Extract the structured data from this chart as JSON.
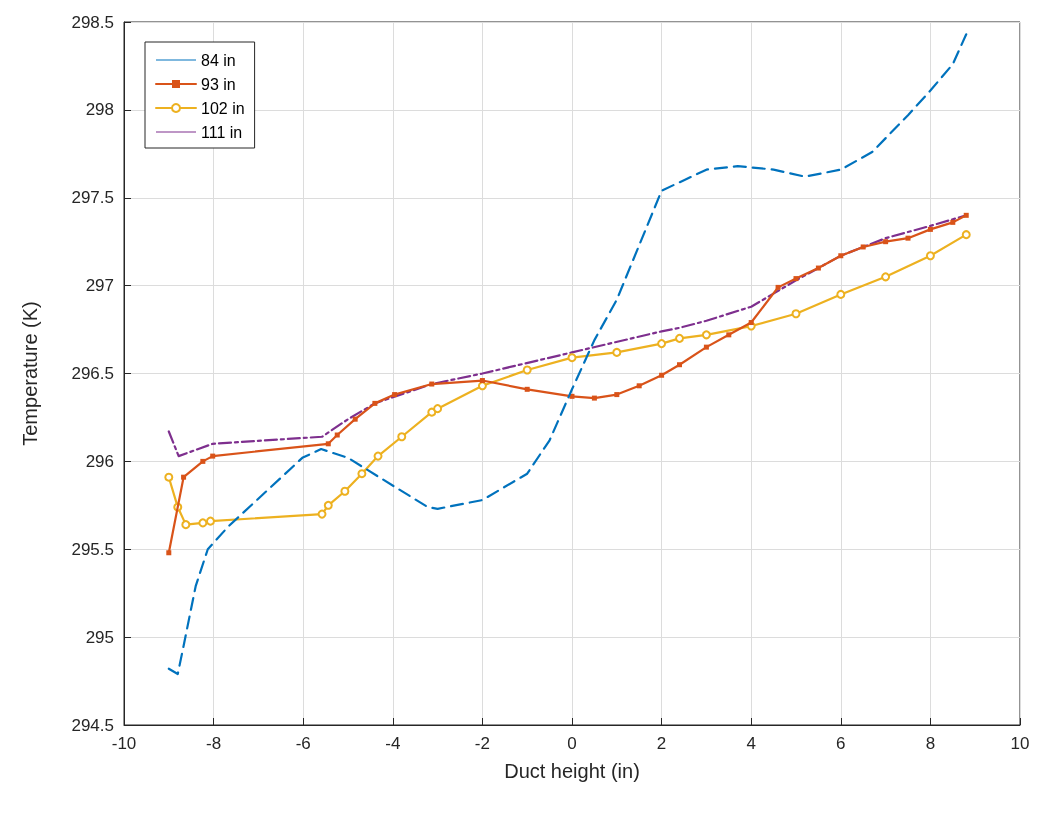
{
  "chart_data": {
    "type": "line",
    "xlabel": "Duct height (in)",
    "ylabel": "Temperature (K)",
    "xlim": [
      -10,
      10
    ],
    "xticks": [
      -10,
      -8,
      -6,
      -4,
      -2,
      0,
      2,
      4,
      6,
      8,
      10
    ],
    "ylim": [
      294.5,
      298.5
    ],
    "yticks": [
      294.5,
      295,
      295.5,
      296,
      296.5,
      297,
      297.5,
      298,
      298.5
    ],
    "grid": true,
    "legend": "top left",
    "series": [
      {
        "name": "84 in",
        "color": "#0072bd",
        "line_style": "dashed",
        "marker": "none",
        "x": [
          -9.0,
          -8.8,
          -8.67,
          -8.4,
          -8.13,
          -7.67,
          -6.78,
          -6.02,
          -5.6,
          -5.0,
          -4.24,
          -3.22,
          -3.0,
          -2.0,
          -1.0,
          -0.5,
          0.0,
          0.5,
          1.0,
          2.0,
          2.5,
          3.0,
          3.7,
          4.5,
          5.2,
          6.0,
          6.7,
          7.5,
          8.0,
          8.5,
          8.8
        ],
        "values": [
          294.82,
          294.79,
          294.95,
          295.29,
          295.5,
          295.63,
          295.84,
          296.02,
          296.07,
          296.02,
          295.9,
          295.74,
          295.73,
          295.78,
          295.93,
          296.12,
          296.41,
          296.69,
          296.92,
          297.54,
          297.6,
          297.66,
          297.68,
          297.66,
          297.62,
          297.66,
          297.76,
          297.97,
          298.11,
          298.26,
          298.43
        ]
      },
      {
        "name": "93 in",
        "color": "#d95319",
        "line_style": "solid",
        "marker": "square",
        "x": [
          -9.0,
          -8.67,
          -8.24,
          -8.02,
          -5.44,
          -5.24,
          -4.84,
          -4.4,
          -3.96,
          -3.13,
          -2.0,
          -1.0,
          0.0,
          0.5,
          1.0,
          1.5,
          2.0,
          2.4,
          3.0,
          3.5,
          4.0,
          4.6,
          5.0,
          5.5,
          6.0,
          6.5,
          7.0,
          7.5,
          8.0,
          8.5,
          8.8
        ],
        "values": [
          295.48,
          295.91,
          296.0,
          296.03,
          296.1,
          296.15,
          296.24,
          296.33,
          296.38,
          296.44,
          296.46,
          296.41,
          296.37,
          296.36,
          296.38,
          296.43,
          296.49,
          296.55,
          296.65,
          296.72,
          296.79,
          296.99,
          297.04,
          297.1,
          297.17,
          297.22,
          297.25,
          297.27,
          297.32,
          297.36,
          297.4
        ]
      },
      {
        "name": "102 in",
        "color": "#edb120",
        "line_style": "solid",
        "marker": "circle",
        "x": [
          -9.0,
          -8.8,
          -8.62,
          -8.24,
          -8.07,
          -5.58,
          -5.44,
          -5.07,
          -4.69,
          -4.33,
          -3.8,
          -3.13,
          -3.0,
          -2.0,
          -1.0,
          0.0,
          1.0,
          2.0,
          2.4,
          3.0,
          4.0,
          5.0,
          6.0,
          7.0,
          8.0,
          8.8
        ],
        "values": [
          295.91,
          295.74,
          295.64,
          295.65,
          295.66,
          295.7,
          295.75,
          295.83,
          295.93,
          296.03,
          296.14,
          296.28,
          296.3,
          296.43,
          296.52,
          296.59,
          296.62,
          296.67,
          296.7,
          296.72,
          296.77,
          296.84,
          296.95,
          297.05,
          297.17,
          297.29
        ]
      },
      {
        "name": "111 in",
        "color": "#7e2f8e",
        "line_style": "dashdot",
        "marker": "none",
        "x": [
          -9.0,
          -8.78,
          -8.02,
          -5.58,
          -5.0,
          -4.4,
          -3.13,
          -2.0,
          0.0,
          2.0,
          2.4,
          3.0,
          4.0,
          5.0,
          6.0,
          7.0,
          8.0,
          8.8
        ],
        "values": [
          296.17,
          296.03,
          296.1,
          296.14,
          296.24,
          296.33,
          296.44,
          296.5,
          296.62,
          296.74,
          296.76,
          296.8,
          296.88,
          297.03,
          297.17,
          297.27,
          297.34,
          297.4
        ]
      }
    ]
  }
}
